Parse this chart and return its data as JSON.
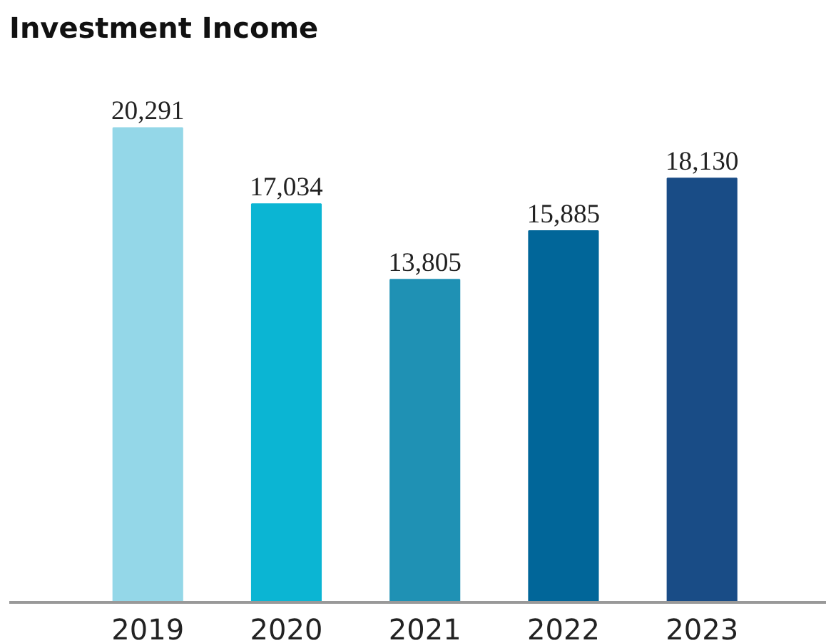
{
  "chart_data": {
    "type": "bar",
    "title": "Investment Income",
    "categories": [
      "2019",
      "2020",
      "2021",
      "2022",
      "2023"
    ],
    "values": [
      20291,
      17034,
      13805,
      15885,
      18130
    ],
    "value_labels": [
      "20,291",
      "17,034",
      "13,805",
      "15,885",
      "18,130"
    ],
    "colors": [
      "#94d7e8",
      "#0bb5d3",
      "#1f91b4",
      "#016699",
      "#194c86"
    ],
    "grid": false
  }
}
